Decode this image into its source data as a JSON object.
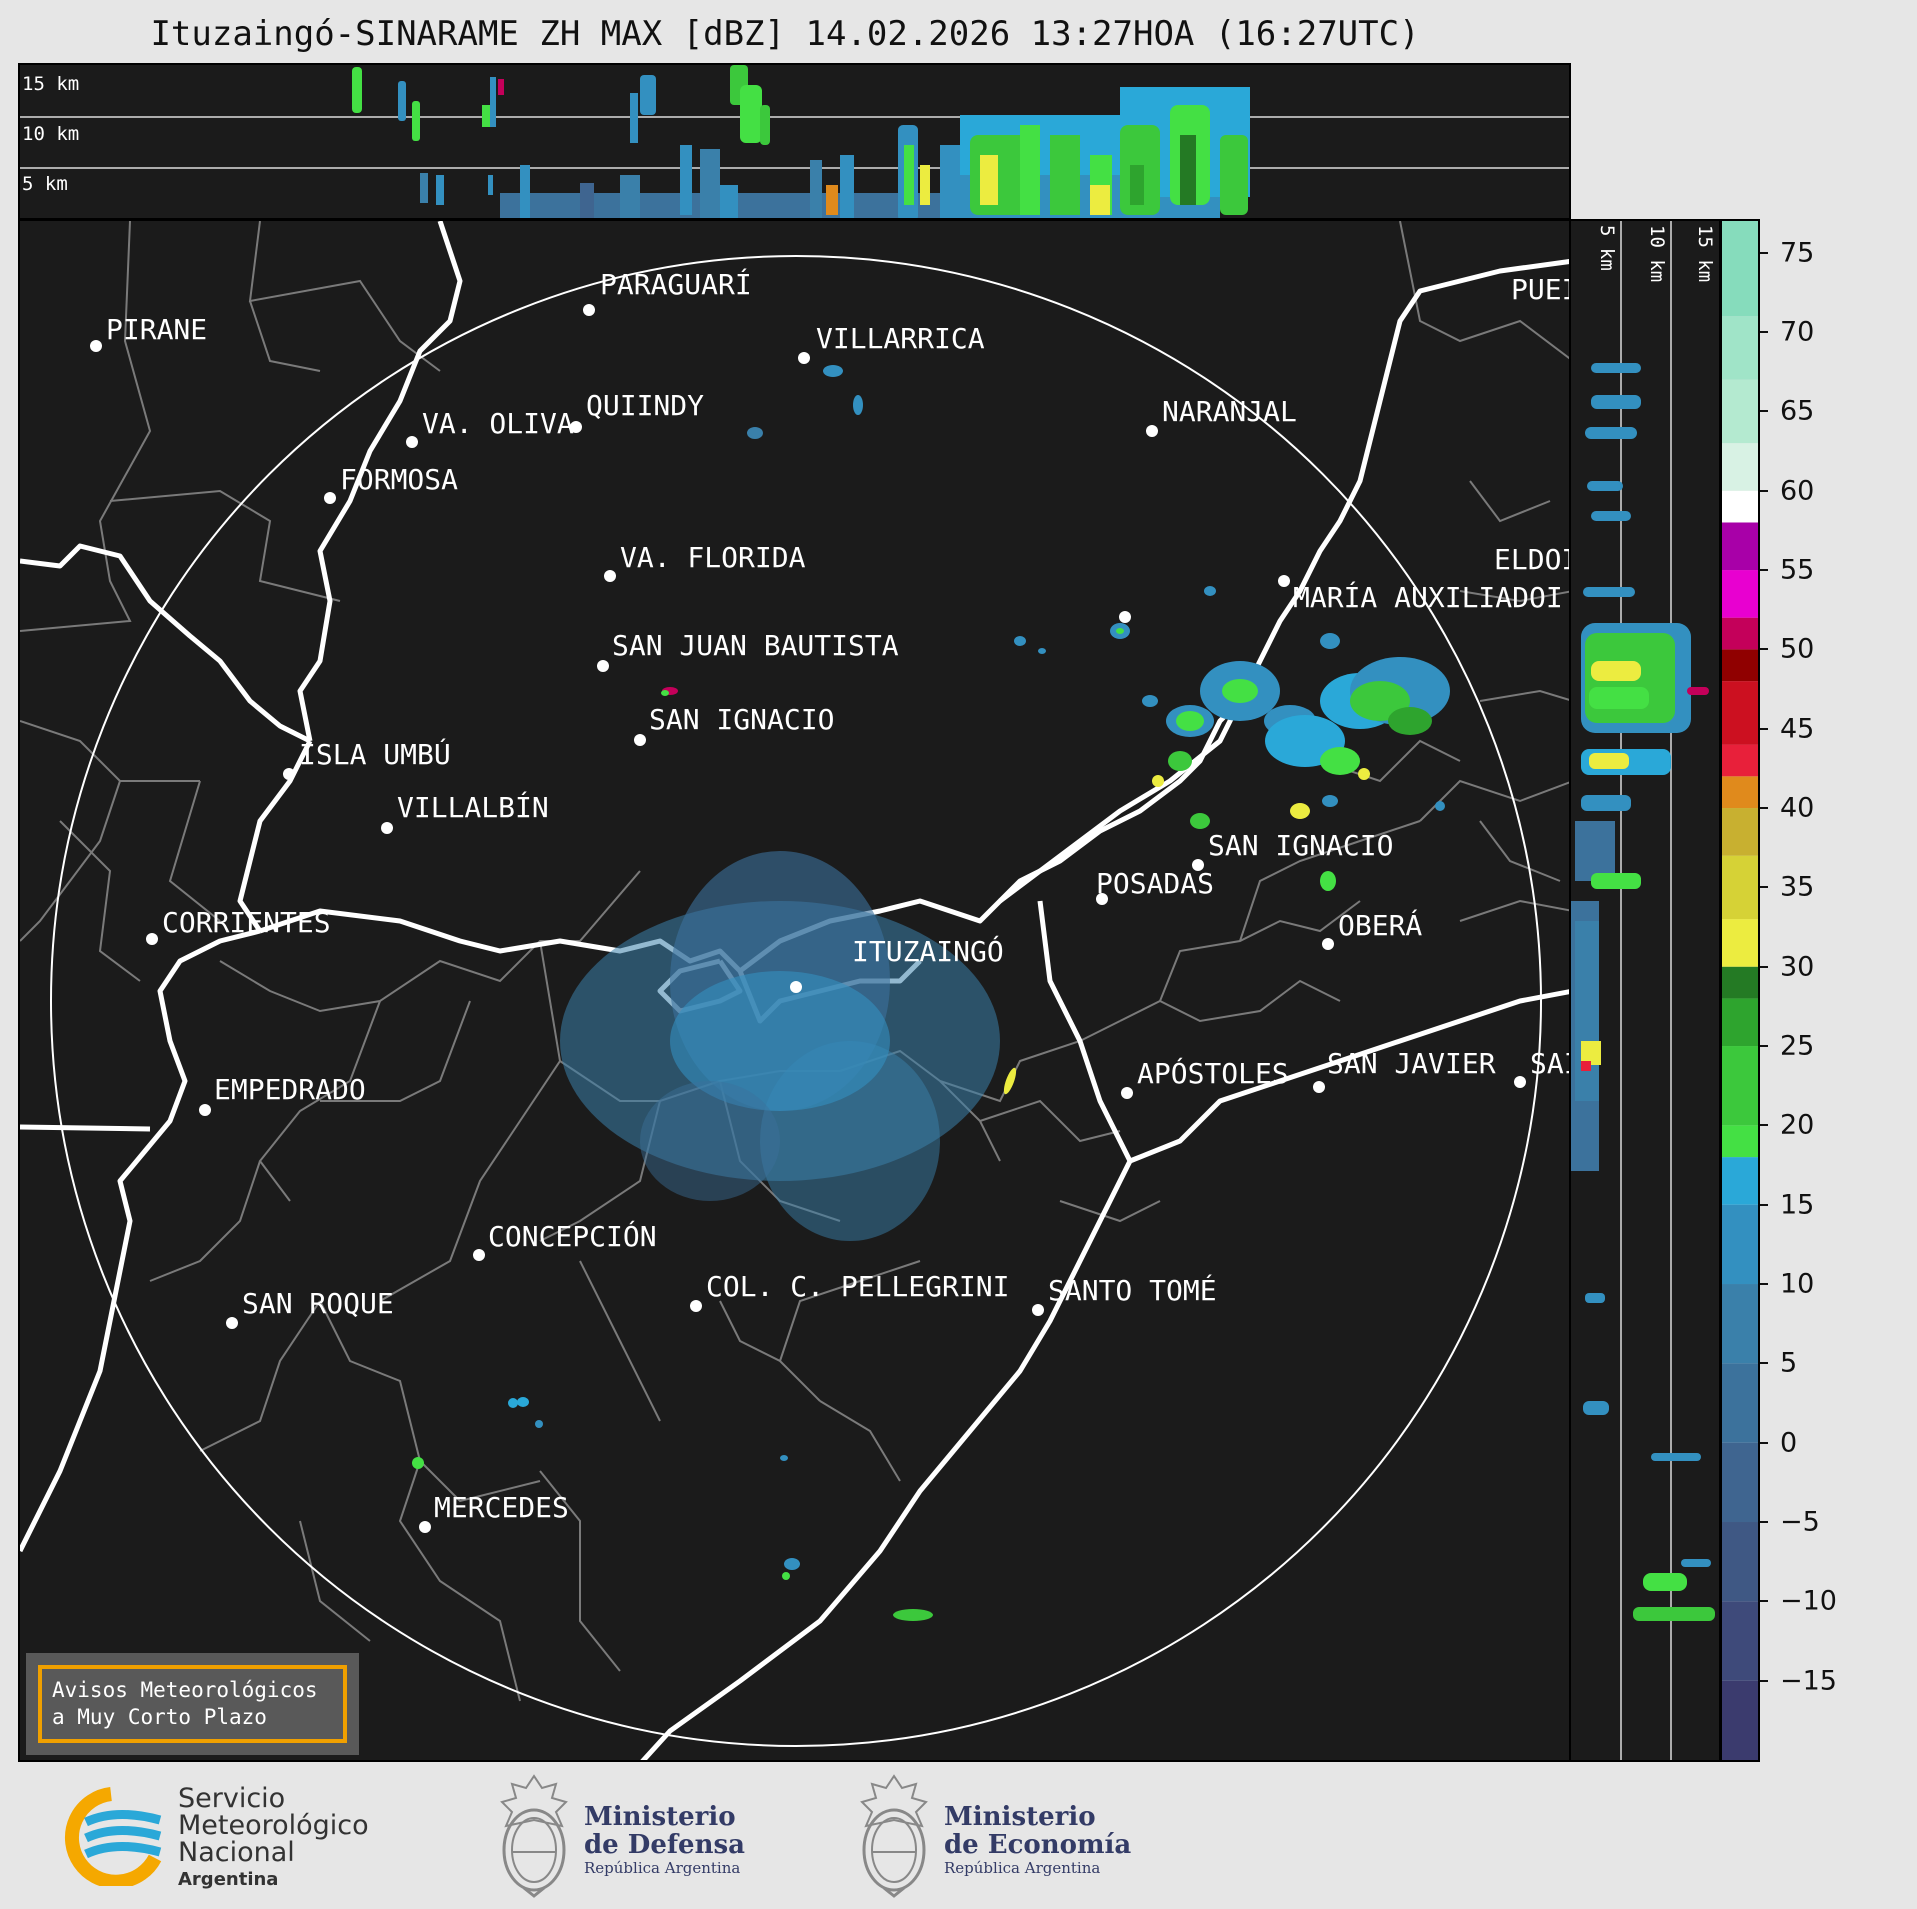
{
  "title": "Ituzaingó-SINARAME ZH MAX [dBZ] 14.02.2026 13:27HOA (16:27UTC)",
  "top_panel": {
    "height_labels": [
      "15 km",
      "10 km",
      "5 km"
    ]
  },
  "side_panel": {
    "height_labels": [
      "5 km",
      "10 km",
      "15 km"
    ]
  },
  "colorbar": {
    "tick_labels": [
      "75",
      "70",
      "65",
      "60",
      "55",
      "50",
      "45",
      "40",
      "35",
      "30",
      "25",
      "20",
      "15",
      "10",
      "5",
      "0",
      "−15",
      "−10",
      "−5"
    ],
    "ticks": [
      {
        "value": 75,
        "label": "75"
      },
      {
        "value": 70,
        "label": "70"
      },
      {
        "value": 65,
        "label": "65"
      },
      {
        "value": 60,
        "label": "60"
      },
      {
        "value": 55,
        "label": "55"
      },
      {
        "value": 50,
        "label": "50"
      },
      {
        "value": 45,
        "label": "45"
      },
      {
        "value": 40,
        "label": "40"
      },
      {
        "value": 35,
        "label": "35"
      },
      {
        "value": 30,
        "label": "30"
      },
      {
        "value": 25,
        "label": "25"
      },
      {
        "value": 20,
        "label": "20"
      },
      {
        "value": 15,
        "label": "15"
      },
      {
        "value": 10,
        "label": "10"
      },
      {
        "value": 5,
        "label": "5"
      },
      {
        "value": 0,
        "label": "0"
      },
      {
        "value": -5,
        "label": "−5"
      },
      {
        "value": -10,
        "label": "−10"
      },
      {
        "value": -15,
        "label": "−15"
      }
    ],
    "range": [
      -20,
      77
    ],
    "bands": [
      {
        "from": -20,
        "to": -15,
        "color": "#3b3b6e"
      },
      {
        "from": -15,
        "to": -10,
        "color": "#3e4a7a"
      },
      {
        "from": -10,
        "to": -5,
        "color": "#3f5884"
      },
      {
        "from": -5,
        "to": 0,
        "color": "#3f6590"
      },
      {
        "from": 0,
        "to": 5,
        "color": "#3c729c"
      },
      {
        "from": 5,
        "to": 10,
        "color": "#3a80aa"
      },
      {
        "from": 10,
        "to": 15,
        "color": "#3390c0"
      },
      {
        "from": 15,
        "to": 18,
        "color": "#2aa8d8"
      },
      {
        "from": 18,
        "to": 20,
        "color": "#44e044"
      },
      {
        "from": 20,
        "to": 25,
        "color": "#3cc83c"
      },
      {
        "from": 25,
        "to": 28,
        "color": "#2ea42e"
      },
      {
        "from": 28,
        "to": 30,
        "color": "#247a24"
      },
      {
        "from": 30,
        "to": 33,
        "color": "#ecec40"
      },
      {
        "from": 33,
        "to": 37,
        "color": "#d6d236"
      },
      {
        "from": 37,
        "to": 40,
        "color": "#c8b030"
      },
      {
        "from": 40,
        "to": 42,
        "color": "#e08a1c"
      },
      {
        "from": 42,
        "to": 44,
        "color": "#e8203a"
      },
      {
        "from": 44,
        "to": 48,
        "color": "#cc1020"
      },
      {
        "from": 48,
        "to": 50,
        "color": "#900000"
      },
      {
        "from": 50,
        "to": 52,
        "color": "#c4005a"
      },
      {
        "from": 52,
        "to": 55,
        "color": "#e800d0"
      },
      {
        "from": 55,
        "to": 58,
        "color": "#a800a8"
      },
      {
        "from": 58,
        "to": 60,
        "color": "#ffffff"
      },
      {
        "from": 60,
        "to": 63,
        "color": "#d8f2e4"
      },
      {
        "from": 63,
        "to": 67,
        "color": "#b4ead0"
      },
      {
        "from": 67,
        "to": 71,
        "color": "#a0e4c8"
      },
      {
        "from": 71,
        "to": 77,
        "color": "#86dcbc"
      }
    ]
  },
  "cities": [
    {
      "name": "PIRANE"
    },
    {
      "name": "PARAGUARÍ"
    },
    {
      "name": "VILLARRICA"
    },
    {
      "name": "QUIINDY"
    },
    {
      "name": "VA. OLIVA"
    },
    {
      "name": "FORMOSA"
    },
    {
      "name": "NARANJAL"
    },
    {
      "name": "PUEI"
    },
    {
      "name": "VA. FLORIDA"
    },
    {
      "name": "ELDOI"
    },
    {
      "name": "MARÍA AUXILIADOI"
    },
    {
      "name": "SAN JUAN BAUTISTA"
    },
    {
      "name": "SAN IGNACIO"
    },
    {
      "name": "ISLA UMBÚ"
    },
    {
      "name": "VILLALBÍN"
    },
    {
      "name": "SAN IGNACIO"
    },
    {
      "name": "POSADAS"
    },
    {
      "name": "CORRIENTES"
    },
    {
      "name": "ITUZAINGÓ"
    },
    {
      "name": "OBERÁ"
    },
    {
      "name": "EMPEDRADO"
    },
    {
      "name": "APÓSTOLES"
    },
    {
      "name": "SAN JAVIER"
    },
    {
      "name": "SAI"
    },
    {
      "name": "CONCEPCIÓN"
    },
    {
      "name": "COL. C. PELLEGRINI"
    },
    {
      "name": "SANTO TOMÉ"
    },
    {
      "name": "SAN ROQUE"
    },
    {
      "name": "MERCEDES"
    }
  ],
  "notice": {
    "line1": "Avisos Meteorológicos",
    "line2": "a Muy Corto Plazo"
  },
  "footer": {
    "smn": {
      "line1": "Servicio",
      "line2": "Meteorológico",
      "line3": "Nacional",
      "line4": "Argentina"
    },
    "defensa": {
      "line1": "Ministerio",
      "line2": "de Defensa",
      "line3": "República Argentina"
    },
    "economia": {
      "line1": "Ministerio",
      "line2": "de Economía",
      "line3": "República Argentina"
    }
  },
  "colors": {
    "background": "#1b1b1b",
    "page": "#e6e6e6",
    "accent": "#f0a000",
    "smn_blue": "#2aa8d8",
    "smn_orange": "#f5a800"
  }
}
